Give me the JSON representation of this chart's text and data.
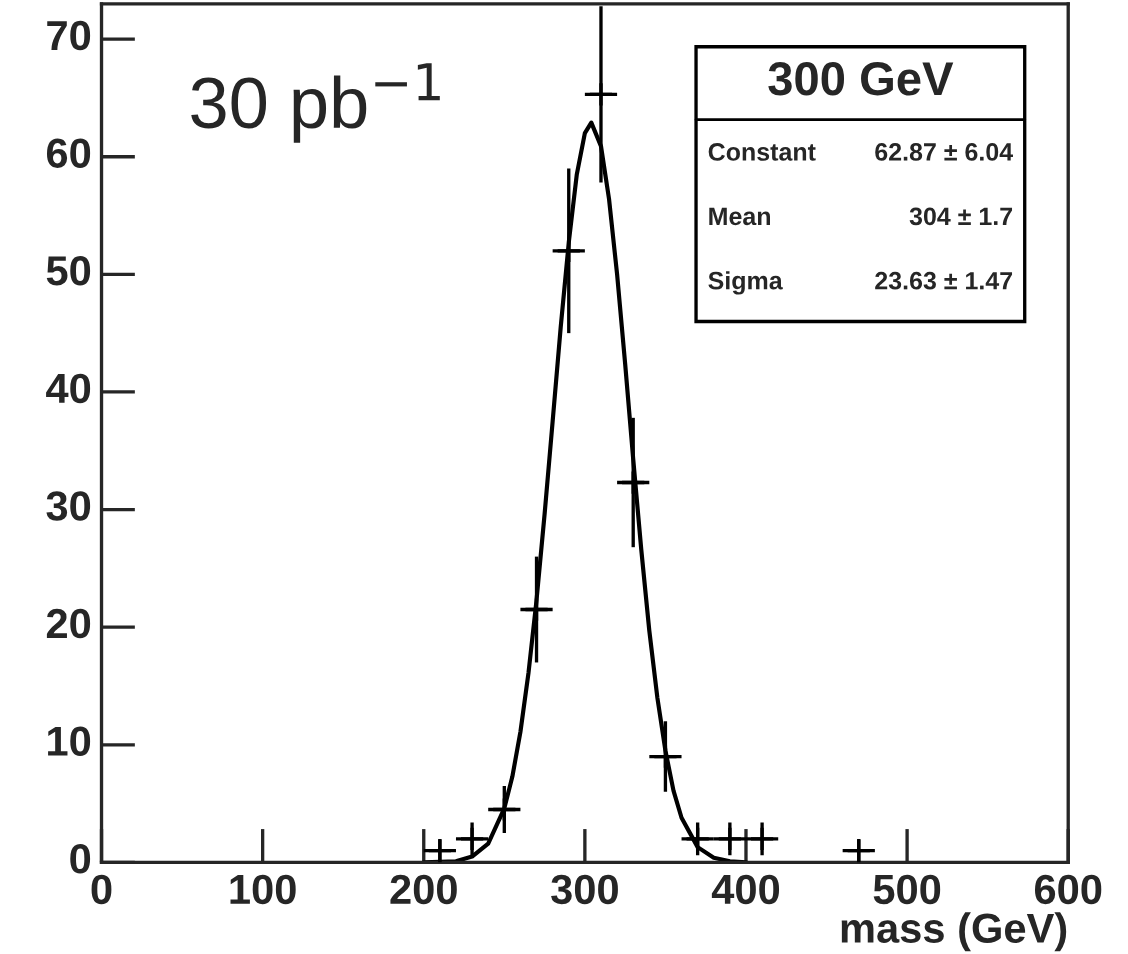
{
  "chart_data": {
    "type": "scatter",
    "xlabel": "mass (GeV)",
    "annotations": [
      "30 pb$^{−1}$",
      "300 GeV",
      "Constant",
      "62.87 ± 6.04",
      "Mean",
      "304 ± 1.7",
      "Sigma",
      "23.63 ± 1.47"
    ],
    "xlim": [
      0,
      600
    ],
    "xticks": [
      0,
      100,
      200,
      300,
      400,
      500,
      600
    ],
    "ylim": [
      0,
      73
    ],
    "yticks": [
      0,
      10,
      20,
      30,
      40,
      50,
      60,
      70
    ],
    "grid": false,
    "legend": false,
    "series": [
      {
        "color": "#000000",
        "marker": "cross",
        "x": [
          210,
          230,
          250,
          270,
          290,
          310,
          330,
          350,
          370,
          390,
          410,
          470
        ],
        "values": [
          1,
          2,
          4.5,
          21.5,
          52,
          65.3,
          32.3,
          9,
          2,
          2,
          2,
          1
        ],
        "errors": [
          1,
          1.4,
          2,
          4.5,
          7,
          7.5,
          5.5,
          3,
          1.4,
          1.4,
          1.4,
          1
        ],
        "xerrors": [
          10,
          10,
          10,
          10,
          10,
          10,
          10,
          10,
          10,
          10,
          10,
          10
        ]
      },
      {
        "type": "line",
        "color": "#000000",
        "marker": "none",
        "line_style": "solid",
        "x": [
          200,
          220,
          230,
          240,
          250,
          255,
          260,
          265,
          270,
          275,
          280,
          285,
          290,
          295,
          300,
          304,
          310,
          315,
          320,
          325,
          330,
          335,
          340,
          345,
          350,
          355,
          360,
          370,
          380,
          390,
          400
        ],
        "values": [
          0,
          0.1,
          0.5,
          1.6,
          4.6,
          7.3,
          11.1,
          16.1,
          22.3,
          29.6,
          37.5,
          45.5,
          52.7,
          58.5,
          62.0,
          62.9,
          60.9,
          56.4,
          50.0,
          42.4,
          34.3,
          26.6,
          19.7,
          14.0,
          9.5,
          6.1,
          3.8,
          1.3,
          0.4,
          0.1,
          0
        ]
      }
    ]
  }
}
